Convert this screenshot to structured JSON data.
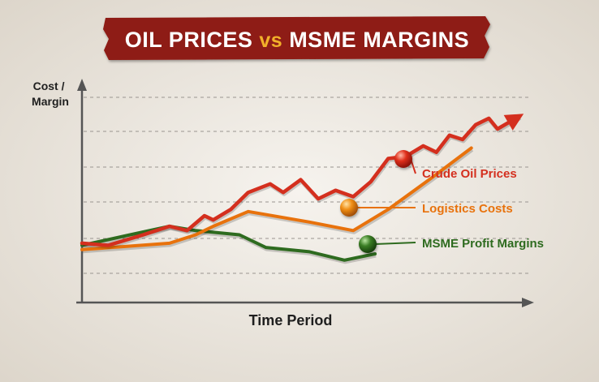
{
  "title": {
    "part1": "OIL PRICES",
    "vs": "vs",
    "part2": "MSME MARGINS"
  },
  "chart_data": {
    "type": "line",
    "title": "OIL PRICES vs MSME MARGINS",
    "xlabel": "Time Period",
    "ylabel": [
      "Cost /",
      "Margin"
    ],
    "grid": true,
    "xlim": [
      0,
      100
    ],
    "ylim": [
      0,
      100
    ],
    "series": [
      {
        "name": "Crude Oil Prices",
        "color": "#d42f1e",
        "arrow": true,
        "x": [
          0,
          6,
          14,
          20,
          24,
          28,
          30,
          34,
          38,
          43,
          46,
          50,
          54,
          58,
          62,
          66,
          70,
          74,
          78,
          81,
          84,
          87,
          90,
          93,
          95,
          100
        ],
        "y": [
          28,
          27,
          32,
          36,
          34,
          41,
          39,
          44,
          52,
          56,
          52,
          58,
          49,
          53,
          50,
          57,
          68,
          69,
          74,
          71,
          79,
          77,
          84,
          87,
          82,
          88
        ]
      },
      {
        "name": "Logistics Costs",
        "color": "#e8720c",
        "x": [
          0,
          20,
          26,
          30,
          38,
          52,
          62,
          70,
          80,
          89
        ],
        "y": [
          25,
          28,
          32,
          36,
          43,
          38,
          34,
          44,
          59,
          73
        ]
      },
      {
        "name": "MSME Profit Margins",
        "color": "#2e6b1f",
        "x": [
          0,
          11,
          20,
          26,
          36,
          42,
          52,
          60,
          67
        ],
        "y": [
          27,
          32,
          36,
          34,
          32,
          26,
          24,
          20,
          23
        ]
      }
    ],
    "labels": [
      {
        "series": "Crude Oil Prices",
        "text": "Crude Oil Prices",
        "color": "#d42f1e"
      },
      {
        "series": "Logistics Costs",
        "text": "Logistics Costs",
        "color": "#e8720c"
      },
      {
        "series": "MSME Profit Margins",
        "text": "MSME Profit Margins",
        "color": "#2e6b1f"
      }
    ]
  }
}
